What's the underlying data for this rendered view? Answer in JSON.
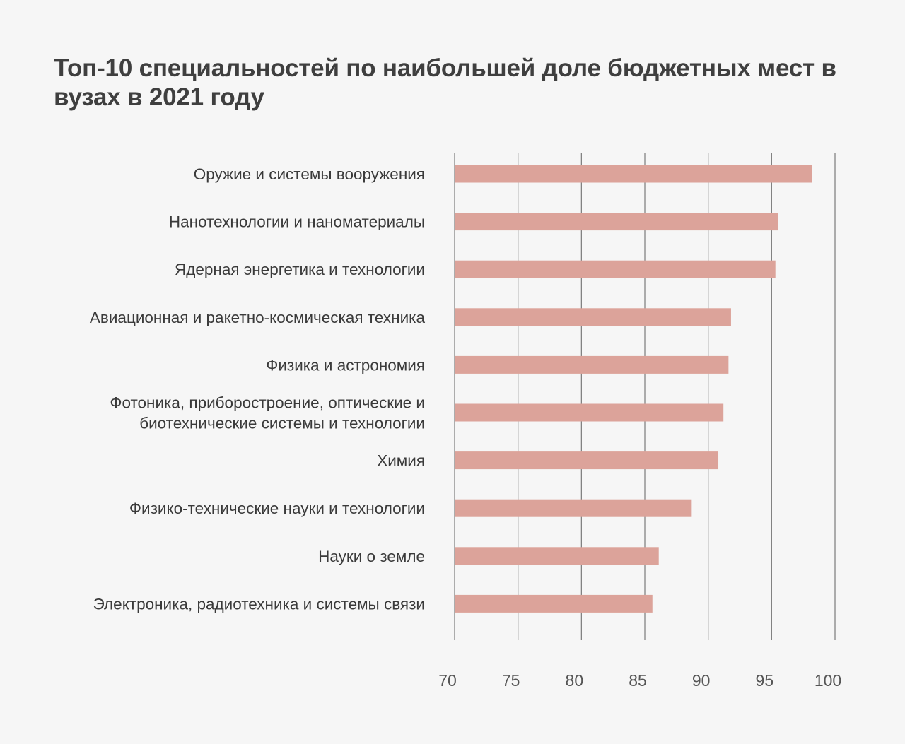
{
  "chart_data": {
    "type": "bar",
    "orientation": "horizontal",
    "title": "Топ-10 специальностей по наибольшей доле бюджетных мест в вузах в 2021 году",
    "categories": [
      [
        "Оружие и системы вооружения"
      ],
      [
        "Нанотехнологии и наноматериалы"
      ],
      [
        "Ядерная энергетика и технологии"
      ],
      [
        "Авиационная и ракетно-космическая техника"
      ],
      [
        "Физика и астрономия"
      ],
      [
        "Фотоника, приборостроение, оптические и",
        "биотехнические системы и технологии"
      ],
      [
        "Химия"
      ],
      [
        "Физико-технические науки и технологии"
      ],
      [
        "Науки о земле"
      ],
      [
        "Электроника, радиотехника и системы связи"
      ]
    ],
    "values": [
      98.2,
      95.5,
      95.3,
      91.8,
      91.6,
      91.2,
      90.8,
      88.7,
      86.1,
      85.6
    ],
    "xlim": [
      70,
      100
    ],
    "xticks": [
      "70",
      "75",
      "80",
      "85",
      "90",
      "95",
      "100"
    ],
    "xlabel": "",
    "ylabel": "",
    "grid": "vertical",
    "bar_color": "#dca39a",
    "grid_color": "#7a7a7a"
  }
}
